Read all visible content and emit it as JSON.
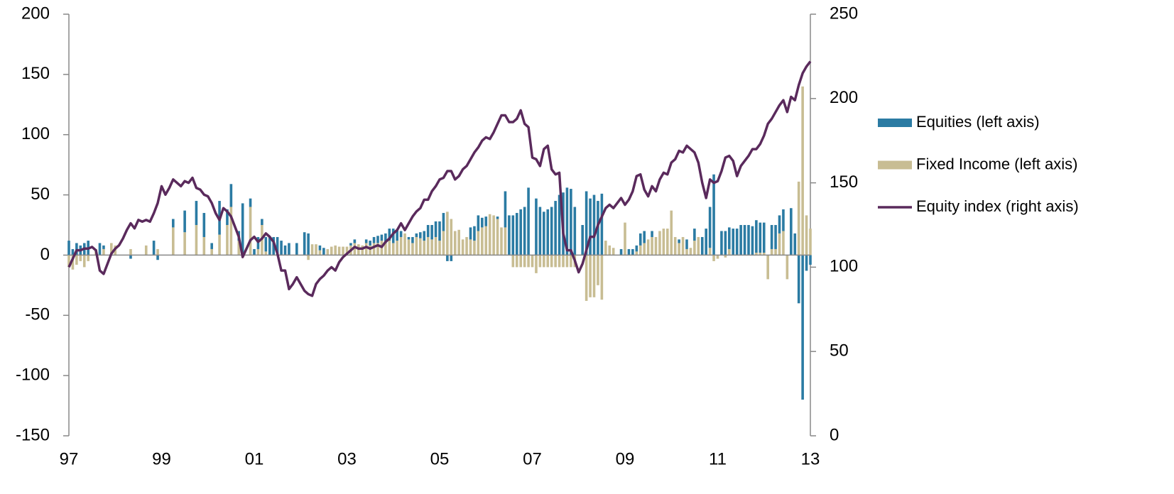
{
  "chart_data": {
    "type": "bar_line",
    "categories": [
      "97",
      null,
      null,
      null,
      null,
      null,
      null,
      null,
      null,
      null,
      null,
      null,
      null,
      null,
      null,
      null,
      null,
      null,
      null,
      null,
      null,
      null,
      null,
      null,
      "99",
      null,
      null,
      null,
      null,
      null,
      null,
      null,
      null,
      null,
      null,
      null,
      null,
      null,
      null,
      null,
      null,
      null,
      null,
      null,
      null,
      null,
      null,
      null,
      "01",
      null,
      null,
      null,
      null,
      null,
      null,
      null,
      null,
      null,
      null,
      null,
      null,
      null,
      null,
      null,
      null,
      null,
      null,
      null,
      null,
      null,
      null,
      null,
      "03",
      null,
      null,
      null,
      null,
      null,
      null,
      null,
      null,
      null,
      null,
      null,
      null,
      null,
      null,
      null,
      null,
      null,
      null,
      null,
      null,
      null,
      null,
      null,
      "05",
      null,
      null,
      null,
      null,
      null,
      null,
      null,
      null,
      null,
      null,
      null,
      null,
      null,
      null,
      null,
      null,
      null,
      null,
      null,
      null,
      null,
      null,
      null,
      "07",
      null,
      null,
      null,
      null,
      null,
      null,
      null,
      null,
      null,
      null,
      null,
      null,
      null,
      null,
      null,
      null,
      null,
      null,
      null,
      null,
      null,
      null,
      null,
      "09",
      null,
      null,
      null,
      null,
      null,
      null,
      null,
      null,
      null,
      null,
      null,
      null,
      null,
      null,
      null,
      null,
      null,
      null,
      null,
      null,
      null,
      null,
      null,
      "11",
      null,
      null,
      null,
      null,
      null,
      null,
      null,
      null,
      null,
      null,
      null,
      null,
      null,
      null,
      null,
      null,
      null,
      null,
      null,
      null,
      null,
      null,
      null,
      "13"
    ],
    "series": [
      {
        "name": "Equities (left axis)",
        "color": "#2b7ba3",
        "kind": "bar",
        "axis": "y",
        "values": [
          12,
          5,
          10,
          8,
          10,
          12,
          0,
          0,
          10,
          3,
          0,
          0,
          0,
          0,
          0,
          0,
          -3,
          0,
          0,
          0,
          0,
          0,
          12,
          -4,
          0,
          0,
          0,
          7,
          0,
          0,
          18,
          0,
          0,
          20,
          0,
          20,
          0,
          5,
          0,
          28,
          0,
          13,
          19,
          0,
          8,
          43,
          0,
          7,
          5,
          10,
          5,
          12,
          15,
          15,
          15,
          12,
          8,
          10,
          0,
          10,
          0,
          19,
          18,
          0,
          0,
          4,
          6,
          0,
          0,
          0,
          0,
          0,
          0,
          2,
          3,
          0,
          0,
          3,
          4,
          5,
          6,
          5,
          8,
          10,
          12,
          9,
          5,
          0,
          2,
          5,
          3,
          5,
          8,
          10,
          12,
          13,
          16,
          15,
          -5,
          -5,
          0,
          0,
          0,
          0,
          10,
          12,
          13,
          8,
          8,
          0,
          0,
          2,
          0,
          30,
          33,
          33,
          35,
          38,
          40,
          56,
          0,
          47,
          40,
          36,
          38,
          40,
          45,
          50,
          52,
          56,
          55,
          40,
          0,
          25,
          53,
          47,
          50,
          45,
          51,
          0,
          0,
          0,
          0,
          5,
          0,
          5,
          5,
          5,
          10,
          10,
          0,
          5,
          0,
          0,
          0,
          0,
          0,
          0,
          3,
          0,
          8,
          0,
          10,
          0,
          15,
          22,
          34,
          67,
          0,
          20,
          20,
          18,
          22,
          22,
          25,
          25,
          25,
          24,
          27,
          25,
          25,
          0,
          20,
          20,
          15,
          18,
          0,
          39,
          18,
          -40,
          -120,
          -13,
          -8
        ]
      },
      {
        "name": "Fixed Income (left axis)",
        "color": "#c8bd93",
        "kind": "bar",
        "axis": "y",
        "values": [
          -10,
          -12,
          -8,
          -5,
          -10,
          -5,
          0,
          5,
          0,
          5,
          0,
          10,
          8,
          0,
          0,
          0,
          5,
          0,
          0,
          0,
          8,
          0,
          0,
          5,
          0,
          0,
          0,
          23,
          0,
          0,
          19,
          0,
          0,
          25,
          0,
          15,
          0,
          5,
          0,
          17,
          0,
          25,
          40,
          0,
          12,
          0,
          0,
          40,
          0,
          5,
          25,
          3,
          0,
          0,
          0,
          0,
          0,
          0,
          0,
          0,
          0,
          0,
          -4,
          9,
          9,
          4,
          0,
          5,
          7,
          8,
          7,
          7,
          7,
          8,
          10,
          9,
          8,
          10,
          8,
          10,
          10,
          12,
          10,
          12,
          10,
          12,
          15,
          18,
          13,
          10,
          15,
          14,
          12,
          15,
          13,
          15,
          12,
          20,
          36,
          30,
          20,
          21,
          13,
          15,
          13,
          12,
          20,
          23,
          24,
          34,
          33,
          30,
          23,
          23,
          0,
          -10,
          -10,
          -10,
          -10,
          -10,
          -10,
          -15,
          -10,
          -10,
          -10,
          -10,
          -10,
          -10,
          -10,
          -10,
          -10,
          -10,
          0,
          0,
          -38,
          -35,
          -35,
          -25,
          -37,
          12,
          8,
          6,
          0,
          0,
          27,
          0,
          0,
          3,
          8,
          10,
          13,
          15,
          15,
          20,
          22,
          22,
          37,
          15,
          10,
          15,
          5,
          6,
          12,
          15,
          0,
          0,
          6,
          -5,
          -3,
          0,
          -2,
          5,
          0,
          0,
          0,
          0,
          0,
          0,
          2,
          2,
          2,
          -20,
          5,
          5,
          18,
          20,
          -20,
          0,
          0,
          61,
          140,
          33,
          22
        ]
      },
      {
        "name": "Equity index (right axis)",
        "color": "#5a2a5c",
        "kind": "line",
        "axis": "y2",
        "values": [
          100,
          105,
          110,
          110,
          111,
          111,
          112,
          110,
          98,
          96,
          102,
          108,
          111,
          113,
          117,
          122,
          126,
          123,
          128,
          127,
          128,
          127,
          132,
          138,
          148,
          143,
          147,
          152,
          150,
          148,
          151,
          150,
          153,
          147,
          146,
          143,
          142,
          138,
          132,
          128,
          135,
          133,
          130,
          124,
          118,
          106,
          111,
          116,
          118,
          115,
          117,
          120,
          118,
          115,
          108,
          98,
          98,
          87,
          90,
          94,
          90,
          86,
          84,
          83,
          90,
          93,
          95,
          98,
          100,
          98,
          103,
          106,
          108,
          110,
          112,
          111,
          111,
          112,
          111,
          112,
          113,
          112,
          115,
          117,
          120,
          122,
          126,
          122,
          126,
          130,
          133,
          135,
          140,
          140,
          145,
          148,
          152,
          153,
          157,
          157,
          152,
          154,
          158,
          160,
          164,
          168,
          171,
          175,
          177,
          176,
          180,
          185,
          190,
          190,
          186,
          186,
          188,
          193,
          185,
          183,
          165,
          164,
          160,
          170,
          172,
          158,
          155,
          156,
          120,
          110,
          110,
          104,
          97,
          102,
          110,
          118,
          118,
          125,
          130,
          135,
          137,
          135,
          138,
          141,
          137,
          140,
          145,
          154,
          155,
          146,
          142,
          148,
          145,
          152,
          156,
          155,
          162,
          164,
          169,
          168,
          172,
          170,
          168,
          162,
          150,
          141,
          152,
          150,
          151,
          157,
          165,
          166,
          163,
          154,
          160,
          163,
          166,
          170,
          170,
          173,
          178,
          185,
          188,
          192,
          196,
          199,
          192,
          201,
          199,
          208,
          215,
          219,
          222
        ]
      }
    ],
    "ylim": [
      -150,
      200
    ],
    "yticks": [
      -150,
      -100,
      -50,
      0,
      50,
      100,
      150,
      200
    ],
    "y2lim": [
      0,
      250
    ],
    "y2ticks": [
      0,
      50,
      100,
      150,
      200,
      250
    ],
    "legend": "right"
  }
}
